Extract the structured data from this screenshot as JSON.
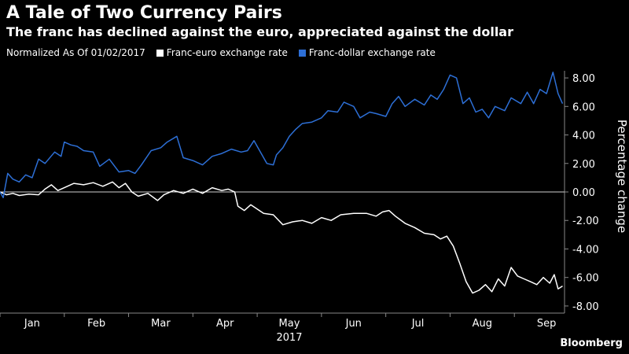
{
  "title": "A Tale of Two Currency Pairs",
  "subtitle": "The franc has declined against the euro, appreciated against the dollar",
  "legend_prefix": "Normalized As Of 01/02/2017",
  "brand": "Bloomberg",
  "chart_data": {
    "type": "line",
    "title": "A Tale of Two Currency Pairs",
    "ylabel": "Percentage change",
    "xlabel": "2017",
    "ylim": [
      -8.5,
      8.5
    ],
    "y_ticks": [
      8,
      6,
      4,
      2,
      0,
      -2,
      -4,
      -6,
      -8
    ],
    "y_tick_labels": [
      "8.00",
      "6.00",
      "4.00",
      "2.00",
      "0.00",
      "-2.00",
      "-4.00",
      "-6.00",
      "-8.00"
    ],
    "x_ticks": [
      {
        "label": "Jan",
        "t": 0.5
      },
      {
        "label": "Feb",
        "t": 1.5
      },
      {
        "label": "Mar",
        "t": 2.5
      },
      {
        "label": "Apr",
        "t": 3.5
      },
      {
        "label": "May",
        "t": 4.5
      },
      {
        "label": "Jun",
        "t": 5.5
      },
      {
        "label": "Jul",
        "t": 6.5
      },
      {
        "label": "Aug",
        "t": 7.5
      },
      {
        "label": "Sep",
        "t": 8.5
      }
    ],
    "x_year_label": "2017",
    "x_range_months": [
      0,
      8.78
    ],
    "grid": false,
    "legend_position": "top-left",
    "series": [
      {
        "name": "Franc-euro exchange rate",
        "color": "#ffffff",
        "points": [
          [
            0.0,
            0.0
          ],
          [
            0.1,
            -0.2
          ],
          [
            0.2,
            -0.1
          ],
          [
            0.3,
            -0.25
          ],
          [
            0.45,
            -0.15
          ],
          [
            0.6,
            -0.2
          ],
          [
            0.7,
            0.2
          ],
          [
            0.8,
            0.5
          ],
          [
            0.9,
            0.1
          ],
          [
            1.0,
            0.3
          ],
          [
            1.15,
            0.6
          ],
          [
            1.3,
            0.5
          ],
          [
            1.45,
            0.65
          ],
          [
            1.6,
            0.4
          ],
          [
            1.75,
            0.7
          ],
          [
            1.85,
            0.3
          ],
          [
            1.95,
            0.6
          ],
          [
            2.05,
            0.0
          ],
          [
            2.15,
            -0.3
          ],
          [
            2.3,
            -0.1
          ],
          [
            2.45,
            -0.6
          ],
          [
            2.55,
            -0.2
          ],
          [
            2.7,
            0.1
          ],
          [
            2.85,
            -0.1
          ],
          [
            3.0,
            0.2
          ],
          [
            3.15,
            -0.1
          ],
          [
            3.3,
            0.3
          ],
          [
            3.45,
            0.1
          ],
          [
            3.55,
            0.2
          ],
          [
            3.65,
            0.0
          ],
          [
            3.7,
            -1.0
          ],
          [
            3.8,
            -1.3
          ],
          [
            3.9,
            -0.9
          ],
          [
            4.0,
            -1.2
          ],
          [
            4.1,
            -1.5
          ],
          [
            4.25,
            -1.6
          ],
          [
            4.4,
            -2.3
          ],
          [
            4.55,
            -2.1
          ],
          [
            4.7,
            -2.0
          ],
          [
            4.85,
            -2.2
          ],
          [
            5.0,
            -1.8
          ],
          [
            5.15,
            -2.0
          ],
          [
            5.3,
            -1.6
          ],
          [
            5.5,
            -1.5
          ],
          [
            5.7,
            -1.5
          ],
          [
            5.85,
            -1.7
          ],
          [
            5.95,
            -1.4
          ],
          [
            6.05,
            -1.3
          ],
          [
            6.15,
            -1.7
          ],
          [
            6.3,
            -2.2
          ],
          [
            6.45,
            -2.5
          ],
          [
            6.6,
            -2.9
          ],
          [
            6.75,
            -3.0
          ],
          [
            6.85,
            -3.3
          ],
          [
            6.95,
            -3.1
          ],
          [
            7.05,
            -3.8
          ],
          [
            7.15,
            -5.0
          ],
          [
            7.25,
            -6.3
          ],
          [
            7.35,
            -7.1
          ],
          [
            7.45,
            -6.9
          ],
          [
            7.55,
            -6.5
          ],
          [
            7.65,
            -7.0
          ],
          [
            7.75,
            -6.1
          ],
          [
            7.85,
            -6.6
          ],
          [
            7.95,
            -5.3
          ],
          [
            8.05,
            -5.9
          ],
          [
            8.15,
            -6.1
          ],
          [
            8.25,
            -6.3
          ],
          [
            8.35,
            -6.5
          ],
          [
            8.45,
            -6.0
          ],
          [
            8.55,
            -6.4
          ],
          [
            8.62,
            -5.8
          ],
          [
            8.68,
            -6.8
          ],
          [
            8.75,
            -6.6
          ]
        ]
      },
      {
        "name": "Franc-dollar exchange rate",
        "color": "#2d6fd6",
        "points": [
          [
            0.0,
            0.0
          ],
          [
            0.05,
            -0.4
          ],
          [
            0.12,
            1.3
          ],
          [
            0.2,
            0.9
          ],
          [
            0.3,
            0.7
          ],
          [
            0.4,
            1.2
          ],
          [
            0.5,
            1.0
          ],
          [
            0.6,
            2.3
          ],
          [
            0.7,
            2.0
          ],
          [
            0.85,
            2.8
          ],
          [
            0.95,
            2.5
          ],
          [
            1.0,
            3.5
          ],
          [
            1.1,
            3.3
          ],
          [
            1.2,
            3.2
          ],
          [
            1.3,
            2.9
          ],
          [
            1.45,
            2.8
          ],
          [
            1.55,
            1.8
          ],
          [
            1.7,
            2.3
          ],
          [
            1.85,
            1.4
          ],
          [
            2.0,
            1.5
          ],
          [
            2.1,
            1.3
          ],
          [
            2.2,
            1.9
          ],
          [
            2.35,
            2.9
          ],
          [
            2.5,
            3.1
          ],
          [
            2.6,
            3.5
          ],
          [
            2.75,
            3.9
          ],
          [
            2.85,
            2.4
          ],
          [
            3.0,
            2.2
          ],
          [
            3.15,
            1.9
          ],
          [
            3.3,
            2.5
          ],
          [
            3.45,
            2.7
          ],
          [
            3.6,
            3.0
          ],
          [
            3.75,
            2.8
          ],
          [
            3.85,
            2.9
          ],
          [
            3.95,
            3.6
          ],
          [
            4.05,
            2.8
          ],
          [
            4.15,
            2.0
          ],
          [
            4.25,
            1.9
          ],
          [
            4.3,
            2.6
          ],
          [
            4.4,
            3.1
          ],
          [
            4.5,
            3.9
          ],
          [
            4.6,
            4.4
          ],
          [
            4.7,
            4.8
          ],
          [
            4.85,
            4.9
          ],
          [
            5.0,
            5.2
          ],
          [
            5.1,
            5.7
          ],
          [
            5.25,
            5.6
          ],
          [
            5.35,
            6.3
          ],
          [
            5.5,
            6.0
          ],
          [
            5.6,
            5.2
          ],
          [
            5.75,
            5.6
          ],
          [
            5.85,
            5.5
          ],
          [
            6.0,
            5.3
          ],
          [
            6.1,
            6.2
          ],
          [
            6.2,
            6.7
          ],
          [
            6.3,
            6.0
          ],
          [
            6.45,
            6.5
          ],
          [
            6.6,
            6.1
          ],
          [
            6.7,
            6.8
          ],
          [
            6.8,
            6.5
          ],
          [
            6.9,
            7.2
          ],
          [
            7.0,
            8.2
          ],
          [
            7.1,
            8.0
          ],
          [
            7.2,
            6.2
          ],
          [
            7.3,
            6.6
          ],
          [
            7.4,
            5.6
          ],
          [
            7.5,
            5.8
          ],
          [
            7.6,
            5.2
          ],
          [
            7.7,
            6.0
          ],
          [
            7.85,
            5.7
          ],
          [
            7.95,
            6.6
          ],
          [
            8.1,
            6.2
          ],
          [
            8.2,
            7.0
          ],
          [
            8.3,
            6.2
          ],
          [
            8.4,
            7.2
          ],
          [
            8.5,
            6.9
          ],
          [
            8.6,
            8.4
          ],
          [
            8.68,
            6.9
          ],
          [
            8.75,
            6.2
          ]
        ]
      }
    ]
  }
}
